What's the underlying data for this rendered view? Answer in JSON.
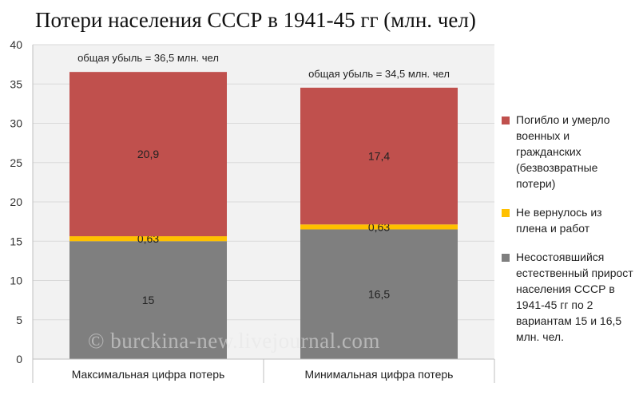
{
  "chart_data": {
    "type": "bar",
    "stacked": true,
    "title": "Потери населения СССР в 1941-45 гг (млн. чел)",
    "categories": [
      "Максимальная цифра потерь",
      "Минимальная цифра потерь"
    ],
    "series": [
      {
        "name": "Несостоявшийся естественный прирост населения СССР в 1941-45 гг по 2 вариантам 15 и 16,5 млн. чел.",
        "color": "#7f7f7f",
        "values": [
          15,
          16.5
        ],
        "labels": [
          "15",
          "16,5"
        ]
      },
      {
        "name": "Не вернулось из плена и работ",
        "color": "#ffc000",
        "values": [
          0.63,
          0.63
        ],
        "labels": [
          "0,63",
          "0,63"
        ]
      },
      {
        "name": "Погибло и умерло военных и гражданских (безвозвратные потери)",
        "color": "#c0504d",
        "values": [
          20.9,
          17.4
        ],
        "labels": [
          "20,9",
          "17,4"
        ]
      }
    ],
    "totals": [
      "общая убыль = 36,5 млн. чел",
      "общая убыль = 34,5 млн. чел"
    ],
    "ylim": [
      0,
      40
    ],
    "yticks": [
      0,
      5,
      10,
      15,
      20,
      25,
      30,
      35,
      40
    ],
    "xlabel": "",
    "ylabel": "",
    "legend_position": "right"
  },
  "watermark": "© burckina-new.livejournal.com"
}
